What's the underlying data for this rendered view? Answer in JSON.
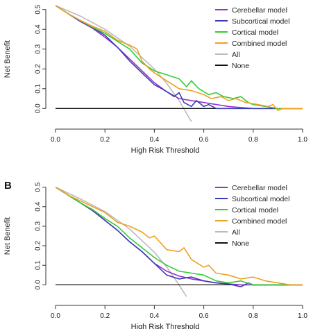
{
  "chart_data": [
    {
      "type": "line",
      "panel_label": "",
      "xlabel": "High Risk Threshold",
      "ylabel": "Net Benefit",
      "xlim": [
        0,
        1
      ],
      "ylim": [
        -0.02,
        0.52
      ],
      "x_ticks": [
        "0.0",
        "0.2",
        "0.4",
        "0.6",
        "0.8",
        "1.0"
      ],
      "y_ticks": [
        "0.0",
        "0.1",
        "0.2",
        "0.3",
        "0.4",
        "0.5"
      ],
      "grid": false,
      "legend_position": "top-right",
      "series": [
        {
          "name": "Cerebellar model",
          "color": "#9932CC",
          "points": [
            [
              0,
              0.52
            ],
            [
              0.05,
              0.48
            ],
            [
              0.1,
              0.44
            ],
            [
              0.15,
              0.405
            ],
            [
              0.2,
              0.36
            ],
            [
              0.25,
              0.31
            ],
            [
              0.3,
              0.25
            ],
            [
              0.35,
              0.19
            ],
            [
              0.4,
              0.13
            ],
            [
              0.45,
              0.085
            ],
            [
              0.5,
              0.05
            ],
            [
              0.55,
              0.04
            ],
            [
              0.6,
              0.03
            ],
            [
              0.65,
              0.02
            ],
            [
              0.7,
              0.01
            ],
            [
              0.75,
              0.005
            ],
            [
              0.8,
              0
            ],
            [
              1,
              0
            ]
          ]
        },
        {
          "name": "Subcortical model",
          "color": "#3A3AB8",
          "points": [
            [
              0,
              0.52
            ],
            [
              0.05,
              0.48
            ],
            [
              0.1,
              0.44
            ],
            [
              0.15,
              0.41
            ],
            [
              0.2,
              0.37
            ],
            [
              0.25,
              0.31
            ],
            [
              0.3,
              0.24
            ],
            [
              0.35,
              0.18
            ],
            [
              0.4,
              0.12
            ],
            [
              0.43,
              0.1
            ],
            [
              0.45,
              0.085
            ],
            [
              0.48,
              0.06
            ],
            [
              0.5,
              0.08
            ],
            [
              0.52,
              0.03
            ],
            [
              0.55,
              0.01
            ],
            [
              0.57,
              0.04
            ],
            [
              0.6,
              0.01
            ],
            [
              0.62,
              0.02
            ],
            [
              0.65,
              0
            ],
            [
              1,
              0
            ]
          ]
        },
        {
          "name": "Cortical model",
          "color": "#33CC33",
          "points": [
            [
              0,
              0.52
            ],
            [
              0.05,
              0.48
            ],
            [
              0.1,
              0.445
            ],
            [
              0.15,
              0.41
            ],
            [
              0.2,
              0.38
            ],
            [
              0.25,
              0.34
            ],
            [
              0.3,
              0.3
            ],
            [
              0.35,
              0.23
            ],
            [
              0.4,
              0.19
            ],
            [
              0.45,
              0.17
            ],
            [
              0.5,
              0.15
            ],
            [
              0.53,
              0.11
            ],
            [
              0.55,
              0.14
            ],
            [
              0.58,
              0.1
            ],
            [
              0.62,
              0.07
            ],
            [
              0.65,
              0.08
            ],
            [
              0.68,
              0.06
            ],
            [
              0.72,
              0.05
            ],
            [
              0.75,
              0.06
            ],
            [
              0.78,
              0.03
            ],
            [
              0.8,
              0.02
            ],
            [
              0.85,
              0.01
            ],
            [
              0.9,
              0
            ],
            [
              1,
              0
            ]
          ]
        },
        {
          "name": "Combined model",
          "color": "#F0A020",
          "points": [
            [
              0,
              0.52
            ],
            [
              0.05,
              0.48
            ],
            [
              0.1,
              0.445
            ],
            [
              0.15,
              0.415
            ],
            [
              0.2,
              0.39
            ],
            [
              0.25,
              0.345
            ],
            [
              0.3,
              0.32
            ],
            [
              0.33,
              0.3
            ],
            [
              0.35,
              0.24
            ],
            [
              0.38,
              0.2
            ],
            [
              0.4,
              0.18
            ],
            [
              0.45,
              0.14
            ],
            [
              0.5,
              0.1
            ],
            [
              0.55,
              0.09
            ],
            [
              0.6,
              0.07
            ],
            [
              0.63,
              0.05
            ],
            [
              0.67,
              0.06
            ],
            [
              0.7,
              0.04
            ],
            [
              0.73,
              0.05
            ],
            [
              0.77,
              0.03
            ],
            [
              0.82,
              0.02
            ],
            [
              0.86,
              0.01
            ],
            [
              0.88,
              0.02
            ],
            [
              0.9,
              -0.01
            ],
            [
              0.92,
              0
            ],
            [
              1,
              0
            ]
          ]
        },
        {
          "name": "All",
          "color": "#BBBBBB",
          "points": [
            [
              0,
              0.52
            ],
            [
              0.1,
              0.467
            ],
            [
              0.2,
              0.4
            ],
            [
              0.3,
              0.314
            ],
            [
              0.4,
              0.2
            ],
            [
              0.45,
              0.127
            ],
            [
              0.5,
              0.04
            ],
            [
              0.55,
              -0.067
            ]
          ]
        },
        {
          "name": "None",
          "color": "#111111",
          "points": [
            [
              0,
              0
            ],
            [
              1,
              0
            ]
          ]
        }
      ]
    },
    {
      "type": "line",
      "panel_label": "B",
      "xlabel": "High Risk Threshold",
      "ylabel": "Net Benefit",
      "xlim": [
        0,
        1
      ],
      "ylim": [
        -0.02,
        0.52
      ],
      "x_ticks": [
        "0.0",
        "0.2",
        "0.4",
        "0.6",
        "0.8",
        "1.0"
      ],
      "y_ticks": [
        "0.0",
        "0.1",
        "0.2",
        "0.3",
        "0.4",
        "0.5"
      ],
      "grid": false,
      "legend_position": "top-right",
      "series": [
        {
          "name": "Cerebellar model",
          "color": "#9932CC",
          "points": [
            [
              0,
              0.5
            ],
            [
              0.05,
              0.46
            ],
            [
              0.1,
              0.42
            ],
            [
              0.15,
              0.38
            ],
            [
              0.2,
              0.33
            ],
            [
              0.25,
              0.28
            ],
            [
              0.3,
              0.22
            ],
            [
              0.35,
              0.17
            ],
            [
              0.4,
              0.11
            ],
            [
              0.45,
              0.07
            ],
            [
              0.5,
              0.045
            ],
            [
              0.55,
              0.03
            ],
            [
              0.6,
              0.02
            ],
            [
              0.65,
              0.01
            ],
            [
              0.7,
              0.005
            ],
            [
              0.75,
              0
            ],
            [
              1,
              0
            ]
          ]
        },
        {
          "name": "Subcortical model",
          "color": "#3A3AB8",
          "points": [
            [
              0,
              0.5
            ],
            [
              0.05,
              0.46
            ],
            [
              0.1,
              0.42
            ],
            [
              0.15,
              0.38
            ],
            [
              0.2,
              0.33
            ],
            [
              0.25,
              0.28
            ],
            [
              0.3,
              0.22
            ],
            [
              0.35,
              0.17
            ],
            [
              0.4,
              0.11
            ],
            [
              0.45,
              0.05
            ],
            [
              0.5,
              0.03
            ],
            [
              0.55,
              0.04
            ],
            [
              0.6,
              0.02
            ],
            [
              0.65,
              0.01
            ],
            [
              0.7,
              0.005
            ],
            [
              0.75,
              -0.01
            ],
            [
              0.78,
              0.01
            ],
            [
              0.8,
              0
            ],
            [
              1,
              0
            ]
          ]
        },
        {
          "name": "Cortical model",
          "color": "#33CC33",
          "points": [
            [
              0,
              0.5
            ],
            [
              0.05,
              0.46
            ],
            [
              0.1,
              0.42
            ],
            [
              0.15,
              0.385
            ],
            [
              0.2,
              0.34
            ],
            [
              0.25,
              0.3
            ],
            [
              0.3,
              0.24
            ],
            [
              0.35,
              0.19
            ],
            [
              0.4,
              0.14
            ],
            [
              0.45,
              0.1
            ],
            [
              0.5,
              0.07
            ],
            [
              0.55,
              0.06
            ],
            [
              0.6,
              0.05
            ],
            [
              0.65,
              0.02
            ],
            [
              0.7,
              0.01
            ],
            [
              0.75,
              0.02
            ],
            [
              0.8,
              0
            ],
            [
              1,
              0
            ]
          ]
        },
        {
          "name": "Combined model",
          "color": "#F0A020",
          "points": [
            [
              0,
              0.5
            ],
            [
              0.05,
              0.46
            ],
            [
              0.1,
              0.43
            ],
            [
              0.15,
              0.4
            ],
            [
              0.2,
              0.37
            ],
            [
              0.25,
              0.32
            ],
            [
              0.3,
              0.3
            ],
            [
              0.35,
              0.27
            ],
            [
              0.38,
              0.24
            ],
            [
              0.4,
              0.25
            ],
            [
              0.45,
              0.18
            ],
            [
              0.5,
              0.17
            ],
            [
              0.52,
              0.19
            ],
            [
              0.55,
              0.13
            ],
            [
              0.6,
              0.09
            ],
            [
              0.62,
              0.1
            ],
            [
              0.65,
              0.06
            ],
            [
              0.7,
              0.05
            ],
            [
              0.75,
              0.03
            ],
            [
              0.8,
              0.04
            ],
            [
              0.85,
              0.02
            ],
            [
              0.9,
              0.01
            ],
            [
              0.95,
              0
            ],
            [
              1,
              0
            ]
          ]
        },
        {
          "name": "All",
          "color": "#BBBBBB",
          "points": [
            [
              0,
              0.5
            ],
            [
              0.1,
              0.44
            ],
            [
              0.2,
              0.375
            ],
            [
              0.3,
              0.286
            ],
            [
              0.4,
              0.167
            ],
            [
              0.45,
              0.091
            ],
            [
              0.5,
              0.0
            ],
            [
              0.53,
              -0.06
            ]
          ]
        },
        {
          "name": "None",
          "color": "#111111",
          "points": [
            [
              0,
              0
            ],
            [
              1,
              0
            ]
          ]
        }
      ]
    }
  ]
}
